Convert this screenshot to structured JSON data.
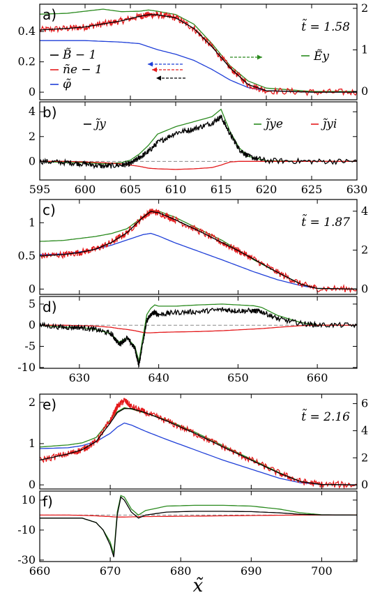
{
  "figure": {
    "xlabel": "x̃",
    "panel_labels": [
      "a)",
      "b)",
      "c)",
      "d)",
      "e)",
      "f)"
    ],
    "time_labels": [
      "t̃ = 1.58",
      "t̃ = 1.87",
      "t̃ = 2.16"
    ],
    "legend_a": [
      {
        "name": "B̃ − 1",
        "color": "#000000"
      },
      {
        "name": "ñe − 1",
        "color": "#e41a1c"
      },
      {
        "name": "φ̃",
        "color": "#1f3fd8"
      },
      {
        "name": "Ẽy",
        "color": "#2a8a1e"
      }
    ],
    "legend_b": [
      {
        "name": "j̃y",
        "color": "#000000"
      },
      {
        "name": "j̃ye",
        "color": "#2a8a1e"
      },
      {
        "name": "j̃yi",
        "color": "#e41a1c"
      }
    ]
  },
  "chart_data": [
    {
      "panel": "a",
      "type": "line",
      "x": [
        595,
        598,
        600,
        602,
        604,
        606,
        607,
        608,
        610,
        612,
        614,
        616,
        618,
        620,
        625,
        630
      ],
      "xlim": [
        595,
        630
      ],
      "ylim": [
        -0.05,
        0.58
      ],
      "y2lim": [
        -0.2,
        2.1
      ],
      "yticks": [
        0,
        0.2,
        0.4
      ],
      "y2ticks": [
        0,
        1,
        2
      ],
      "series": [
        {
          "name": "B̃ − 1",
          "color": "#000000",
          "values": [
            0.41,
            0.42,
            0.43,
            0.45,
            0.47,
            0.5,
            0.51,
            0.51,
            0.49,
            0.42,
            0.3,
            0.16,
            0.05,
            0.01,
            0.0,
            0.0
          ]
        },
        {
          "name": "ñe − 1",
          "color": "#e41a1c",
          "values": [
            0.41,
            0.42,
            0.43,
            0.45,
            0.47,
            0.5,
            0.51,
            0.51,
            0.49,
            0.42,
            0.3,
            0.16,
            0.05,
            0.01,
            0.0,
            0.0
          ],
          "noisy": true
        },
        {
          "name": "φ̃",
          "color": "#1f3fd8",
          "values": [
            0.34,
            0.34,
            0.34,
            0.335,
            0.33,
            0.32,
            0.3,
            0.28,
            0.25,
            0.21,
            0.15,
            0.08,
            0.03,
            0.01,
            0.0,
            0.0
          ]
        },
        {
          "name": "Ẽy",
          "axis": "right",
          "color": "#2a8a1e",
          "values": [
            1.86,
            1.88,
            1.93,
            1.98,
            1.92,
            1.93,
            1.96,
            1.93,
            1.85,
            1.62,
            1.15,
            0.62,
            0.25,
            0.08,
            0.0,
            0.0
          ]
        }
      ]
    },
    {
      "panel": "b",
      "type": "line",
      "x": [
        595,
        598,
        600,
        602,
        604,
        605,
        606,
        607,
        608,
        610,
        612,
        614,
        615,
        616,
        617,
        618,
        620,
        625,
        630
      ],
      "xlim": [
        595,
        630
      ],
      "ylim": [
        -1.5,
        4.8
      ],
      "yticks": [
        0,
        2,
        4
      ],
      "xticks": [
        595,
        600,
        605,
        610,
        615,
        620,
        625,
        630
      ],
      "series": [
        {
          "name": "j̃y",
          "color": "#000000",
          "values": [
            0.0,
            -0.1,
            -0.2,
            -0.4,
            -0.3,
            -0.2,
            0.3,
            0.8,
            1.5,
            2.3,
            2.6,
            3.1,
            3.6,
            2.2,
            1.0,
            0.4,
            0.05,
            0.0,
            0.0
          ],
          "noisy": true
        },
        {
          "name": "j̃ye",
          "color": "#2a8a1e",
          "values": [
            0.0,
            -0.1,
            -0.1,
            -0.2,
            -0.1,
            0.1,
            0.6,
            1.3,
            2.2,
            2.8,
            3.2,
            3.6,
            4.2,
            2.4,
            1.1,
            0.4,
            0.05,
            0.0,
            0.0
          ]
        },
        {
          "name": "j̃yi",
          "color": "#e41a1c",
          "values": [
            0.0,
            0.0,
            -0.05,
            -0.1,
            -0.2,
            -0.3,
            -0.4,
            -0.55,
            -0.6,
            -0.65,
            -0.6,
            -0.5,
            -0.3,
            -0.05,
            0.0,
            0.0,
            0.0,
            0.0,
            0.0
          ]
        }
      ]
    },
    {
      "panel": "c",
      "type": "line",
      "x": [
        625,
        628,
        630,
        632,
        634,
        636,
        638,
        639,
        640,
        642,
        645,
        648,
        650,
        652,
        655,
        658,
        660,
        665
      ],
      "xlim": [
        625,
        665
      ],
      "ylim": [
        -0.08,
        1.35
      ],
      "y2lim": [
        -0.27,
        4.6
      ],
      "yticks": [
        0,
        0.5,
        1
      ],
      "y2ticks": [
        0,
        2,
        4
      ],
      "series": [
        {
          "name": "B̃ − 1",
          "color": "#000000",
          "values": [
            0.5,
            0.52,
            0.55,
            0.6,
            0.7,
            0.85,
            1.08,
            1.17,
            1.15,
            1.05,
            0.88,
            0.7,
            0.58,
            0.45,
            0.25,
            0.07,
            0.01,
            0.0
          ]
        },
        {
          "name": "ñe − 1",
          "color": "#e41a1c",
          "values": [
            0.5,
            0.52,
            0.55,
            0.6,
            0.7,
            0.85,
            1.08,
            1.17,
            1.15,
            1.05,
            0.88,
            0.7,
            0.58,
            0.45,
            0.25,
            0.07,
            0.01,
            0.0
          ],
          "noisy": true
        },
        {
          "name": "φ̃",
          "color": "#1f3fd8",
          "values": [
            0.52,
            0.53,
            0.56,
            0.6,
            0.66,
            0.74,
            0.82,
            0.84,
            0.8,
            0.7,
            0.57,
            0.44,
            0.35,
            0.26,
            0.14,
            0.05,
            0.01,
            0.0
          ]
        },
        {
          "name": "Ẽy",
          "axis": "right",
          "color": "#2a8a1e",
          "values": [
            2.45,
            2.5,
            2.6,
            2.7,
            2.85,
            3.1,
            3.7,
            4.05,
            4.0,
            3.7,
            3.1,
            2.5,
            2.0,
            1.5,
            0.85,
            0.25,
            0.03,
            0.0
          ]
        }
      ]
    },
    {
      "panel": "d",
      "type": "line",
      "x": [
        625,
        628,
        630,
        632,
        634,
        635,
        636,
        637,
        637.5,
        638,
        638.5,
        639,
        639.5,
        640,
        642,
        645,
        648,
        650,
        652,
        653,
        655,
        658,
        660,
        665
      ],
      "xlim": [
        625,
        665
      ],
      "ylim": [
        -10.2,
        6.8
      ],
      "yticks": [
        -10,
        -5,
        0,
        5
      ],
      "xticks": [
        630,
        640,
        650,
        660
      ],
      "series": [
        {
          "name": "j̃y",
          "color": "#000000",
          "values": [
            0,
            -0.5,
            -0.5,
            -1.0,
            -2.0,
            -4.5,
            -3.0,
            -5.5,
            -9.5,
            -4.0,
            1.0,
            2.5,
            3.0,
            2.5,
            3.0,
            3.2,
            3.7,
            3.4,
            3.4,
            3.2,
            1.5,
            0.4,
            0.05,
            0.0
          ],
          "noisy": true
        },
        {
          "name": "j̃ye",
          "color": "#2a8a1e",
          "values": [
            0,
            -0.5,
            -0.5,
            -1.0,
            -2.0,
            -4.0,
            -3.0,
            -5.0,
            -8.5,
            -3.0,
            2.5,
            4.0,
            4.8,
            4.5,
            4.5,
            4.8,
            5.0,
            4.8,
            4.6,
            4.2,
            2.3,
            0.6,
            0.05,
            0.0
          ]
        },
        {
          "name": "j̃yi",
          "color": "#e41a1c",
          "values": [
            0,
            0,
            -0.1,
            -0.2,
            -0.5,
            -0.8,
            -1.0,
            -1.3,
            -1.5,
            -1.7,
            -1.8,
            -1.8,
            -1.75,
            -1.7,
            -1.6,
            -1.5,
            -1.3,
            -1.1,
            -0.9,
            -0.8,
            -0.5,
            -0.1,
            0.0,
            0.0
          ]
        }
      ]
    },
    {
      "panel": "e",
      "type": "line",
      "x": [
        660,
        664,
        666,
        668,
        670,
        671,
        672,
        673,
        675,
        678,
        682,
        686,
        690,
        694,
        697,
        700,
        705
      ],
      "xlim": [
        660,
        705
      ],
      "ylim": [
        -0.1,
        2.2
      ],
      "y2lim": [
        -0.3,
        6.7
      ],
      "yticks": [
        0,
        1,
        2
      ],
      "y2ticks": [
        0,
        2,
        4,
        6
      ],
      "series": [
        {
          "name": "B̃ − 1",
          "color": "#000000",
          "values": [
            0.6,
            0.75,
            0.85,
            1.05,
            1.5,
            1.75,
            1.85,
            1.85,
            1.75,
            1.55,
            1.25,
            0.92,
            0.6,
            0.28,
            0.08,
            0.01,
            0.0
          ]
        },
        {
          "name": "ñe − 1",
          "color": "#e41a1c",
          "values": [
            0.6,
            0.75,
            0.85,
            1.05,
            1.55,
            1.9,
            2.05,
            1.9,
            1.75,
            1.55,
            1.25,
            0.92,
            0.6,
            0.28,
            0.08,
            0.01,
            0.0
          ],
          "noisy": true
        },
        {
          "name": "φ̃",
          "color": "#1f3fd8",
          "values": [
            0.88,
            0.9,
            0.95,
            1.05,
            1.25,
            1.4,
            1.5,
            1.45,
            1.3,
            1.1,
            0.85,
            0.6,
            0.38,
            0.16,
            0.05,
            0.01,
            0.0
          ]
        },
        {
          "name": "Ẽy",
          "axis": "right",
          "color": "#2a8a1e",
          "values": [
            2.8,
            2.95,
            3.1,
            3.5,
            4.8,
            5.4,
            5.7,
            5.6,
            5.3,
            4.8,
            3.9,
            2.9,
            1.9,
            0.9,
            0.25,
            0.03,
            0.0
          ]
        }
      ]
    },
    {
      "panel": "f",
      "type": "line",
      "x": [
        660,
        664,
        666,
        668,
        669,
        670,
        670.5,
        671,
        671.5,
        672,
        673,
        674,
        675,
        678,
        682,
        686,
        690,
        694,
        697,
        700,
        705
      ],
      "xlim": [
        660,
        705
      ],
      "ylim": [
        -31,
        16
      ],
      "yticks": [
        -30,
        -10,
        10
      ],
      "xticks": [
        660,
        670,
        680,
        690,
        700
      ],
      "series": [
        {
          "name": "j̃y",
          "color": "#000000",
          "values": [
            -2,
            -2,
            -2,
            -5,
            -10,
            -20,
            -28,
            0,
            12,
            10,
            2,
            -2,
            0,
            2,
            2.5,
            2.5,
            2.3,
            1.5,
            0.5,
            0.1,
            0.0
          ]
        },
        {
          "name": "j̃ye",
          "color": "#2a8a1e",
          "values": [
            -2,
            -2,
            -2,
            -5,
            -10,
            -18,
            -26,
            2,
            13,
            12,
            4,
            0,
            3,
            6,
            6.5,
            6.5,
            6.0,
            4.0,
            1.5,
            0.2,
            0.0
          ]
        },
        {
          "name": "j̃yi",
          "color": "#e41a1c",
          "values": [
            0,
            0,
            -0.2,
            -0.5,
            -0.8,
            -1.0,
            -1.2,
            -1.3,
            -1.3,
            -1.3,
            -1.2,
            -1.1,
            -1.0,
            -0.9,
            -0.7,
            -0.5,
            -0.3,
            -0.1,
            0.0,
            0.0,
            0.0
          ]
        }
      ]
    }
  ]
}
